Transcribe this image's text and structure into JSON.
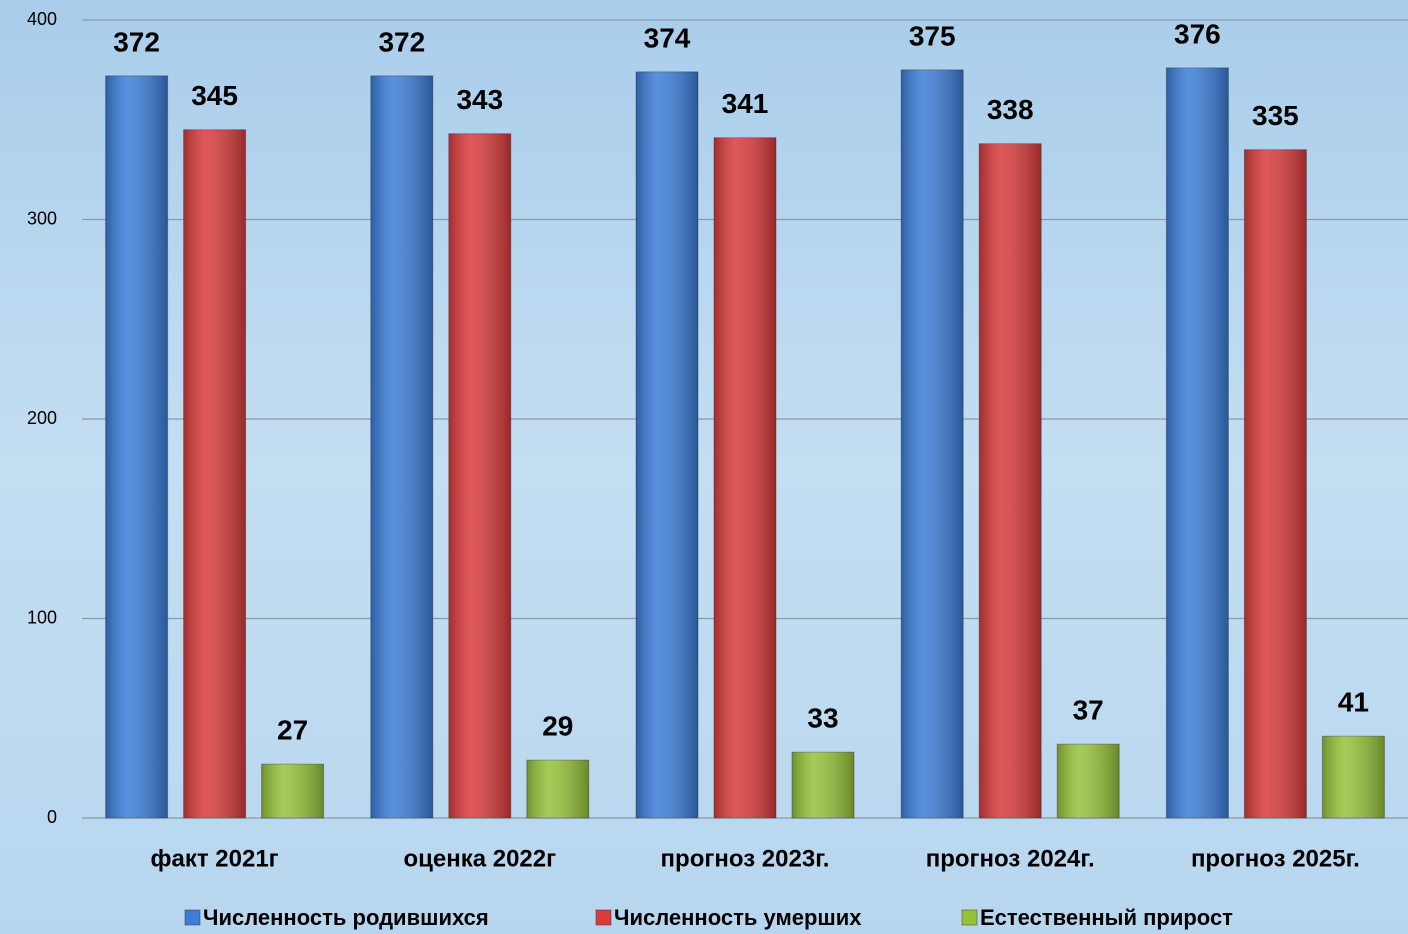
{
  "chart_data": {
    "type": "bar",
    "categories": [
      "факт 2021г",
      "оценка 2022г",
      "прогноз 2023г.",
      "прогноз 2024г.",
      "прогноз 2025г."
    ],
    "series": [
      {
        "name": "Численность родившихся",
        "color": "#3b7dd8",
        "values": [
          372,
          372,
          374,
          375,
          376
        ]
      },
      {
        "name": "Численность умерших",
        "color": "#d93b3b",
        "values": [
          345,
          343,
          341,
          338,
          335
        ]
      },
      {
        "name": "Естественный прирост",
        "color": "#96c23a",
        "values": [
          27,
          29,
          33,
          37,
          41
        ]
      }
    ],
    "ylim": [
      0,
      400
    ],
    "yticks": [
      0,
      100,
      200,
      300,
      400
    ],
    "grid": true,
    "legend": "bottom"
  }
}
